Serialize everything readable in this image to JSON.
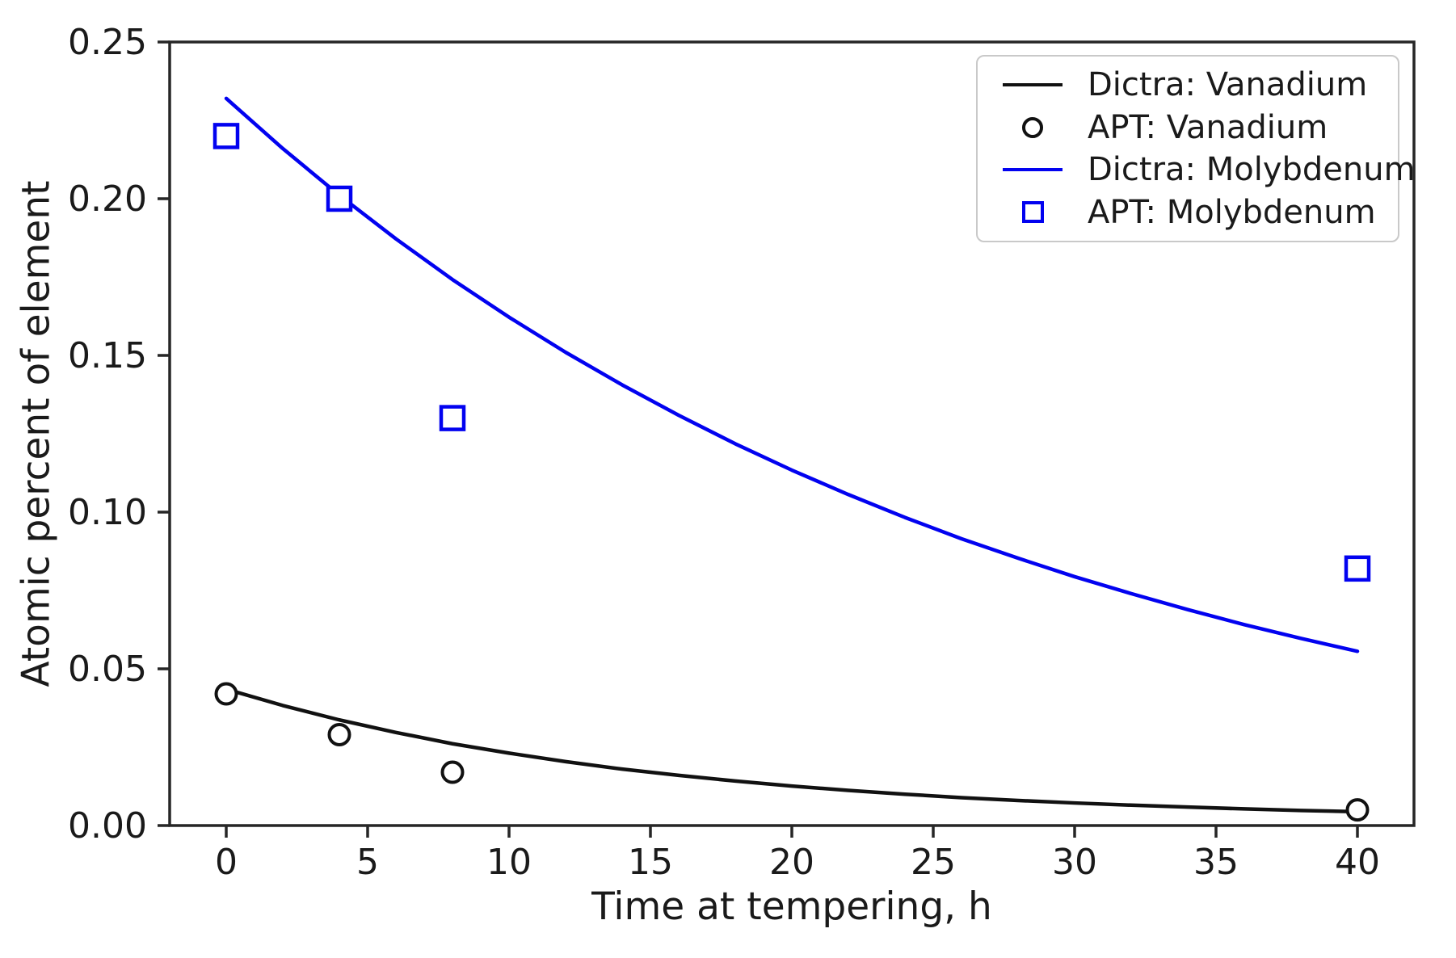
{
  "chart_data": {
    "type": "line",
    "title": "",
    "xlabel": "Time at tempering, h",
    "ylabel": "Atomic percent of element",
    "xlim": [
      -2,
      42
    ],
    "ylim": [
      0,
      0.25
    ],
    "grid": false,
    "legend_position": "upper right",
    "axis_color": "#262626",
    "tick_label_color": "#1a1a1a",
    "xticks": {
      "values": [
        0,
        5,
        10,
        15,
        20,
        25,
        30,
        35,
        40
      ],
      "labels": [
        "0",
        "5",
        "10",
        "15",
        "20",
        "25",
        "30",
        "35",
        "40"
      ]
    },
    "yticks": {
      "values": [
        0,
        0.05,
        0.1,
        0.15,
        0.2,
        0.25
      ],
      "labels": [
        "0.00",
        "0.05",
        "0.10",
        "0.15",
        "0.20",
        "0.25"
      ]
    },
    "series": [
      {
        "name": "Dictra: Vanadium",
        "kind": "line",
        "color": "#111111",
        "x": [
          0,
          2,
          4,
          6,
          8,
          10,
          12,
          14,
          16,
          18,
          20,
          22,
          24,
          26,
          28,
          30,
          32,
          34,
          36,
          38,
          40
        ],
        "y": [
          0.0435,
          0.0383,
          0.0337,
          0.0297,
          0.0261,
          0.0231,
          0.0204,
          0.018,
          0.016,
          0.0142,
          0.0126,
          0.0112,
          0.01,
          0.0089,
          0.008,
          0.0072,
          0.0065,
          0.0059,
          0.0053,
          0.0048,
          0.0044
        ]
      },
      {
        "name": "APT: Vanadium",
        "kind": "scatter",
        "marker": "circle",
        "color": "#111111",
        "x": [
          0,
          4,
          8,
          40
        ],
        "y": [
          0.042,
          0.029,
          0.017,
          0.005
        ]
      },
      {
        "name": "Dictra: Molybdenum",
        "kind": "line",
        "color": "#0202f0",
        "x": [
          0,
          2,
          4,
          6,
          8,
          10,
          12,
          14,
          16,
          18,
          20,
          22,
          24,
          26,
          28,
          30,
          32,
          34,
          36,
          38,
          40
        ],
        "y": [
          0.232,
          0.216,
          0.2011,
          0.1872,
          0.1742,
          0.1622,
          0.151,
          0.1406,
          0.1309,
          0.1218,
          0.1134,
          0.1056,
          0.0983,
          0.0915,
          0.0853,
          0.0794,
          0.074,
          0.0689,
          0.0641,
          0.0597,
          0.0556
        ]
      },
      {
        "name": "APT: Molybdenum",
        "kind": "scatter",
        "marker": "square",
        "color": "#0202f0",
        "x": [
          0,
          4,
          8,
          40
        ],
        "y": [
          0.22,
          0.2,
          0.13,
          0.082
        ]
      }
    ]
  }
}
